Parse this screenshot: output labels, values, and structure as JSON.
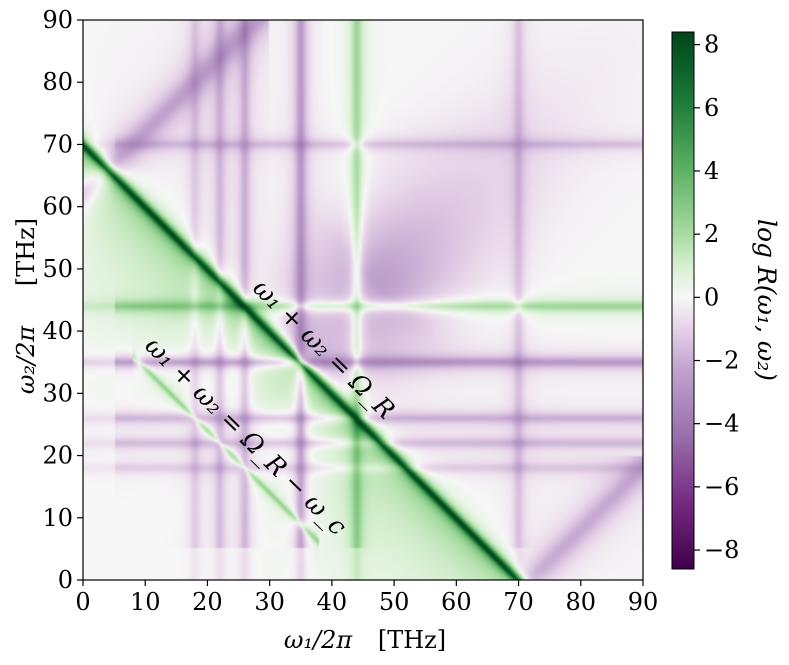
{
  "chart_data": {
    "type": "heatmap",
    "title": "",
    "xlabel": "ω₁/2π",
    "xunit": "[THz]",
    "ylabel": "ω₂/2π",
    "yunit": "[THz]",
    "xlim": [
      0,
      90
    ],
    "ylim": [
      0,
      90
    ],
    "xticks": [
      "0",
      "10",
      "20",
      "30",
      "40",
      "50",
      "60",
      "70",
      "80",
      "90"
    ],
    "yticks": [
      "0",
      "10",
      "20",
      "30",
      "40",
      "50",
      "60",
      "70",
      "80",
      "90"
    ],
    "colorbar": {
      "label": "log R(ω₁, ω₂)",
      "range": [
        -8.6,
        8.4
      ],
      "ticks": [
        "−8",
        "−6",
        "−4",
        "−2",
        "0",
        "2",
        "4",
        "6",
        "8"
      ],
      "colormap": "PRGn",
      "color_low": "#40004b",
      "color_mid": "#f7f7f7",
      "color_high": "#00441b"
    },
    "resonance_lines_thz": [
      18,
      22,
      26,
      35,
      44,
      70
    ],
    "annotations": [
      {
        "text": "ω₁ + ω₂ = Ω_R",
        "line_sum_thz": 70
      },
      {
        "text": "ω₁ + ω₂ = Ω_R − ω_c",
        "line_sum_thz": 44
      }
    ]
  }
}
